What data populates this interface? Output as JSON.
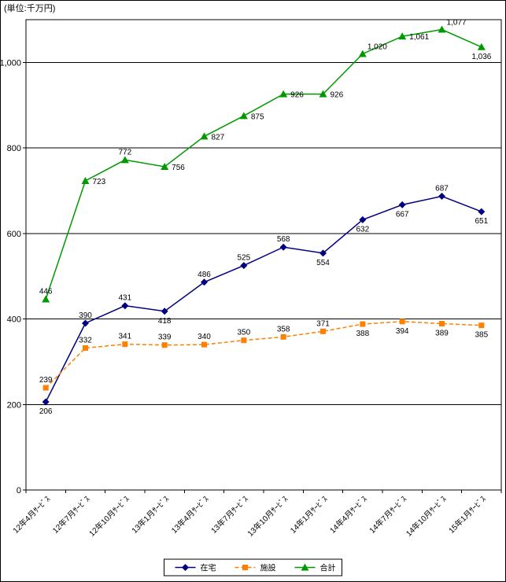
{
  "chart_data": {
    "type": "line",
    "title": "",
    "unit": "(単位:千万円)",
    "categories": [
      "12年4月ｻｰﾋﾞｽ",
      "12年7月ｻｰﾋﾞｽ",
      "12年10月ｻｰﾋﾞｽ",
      "13年1月ｻｰﾋﾞｽ",
      "13年4月ｻｰﾋﾞｽ",
      "13年7月ｻｰﾋﾞｽ",
      "13年10月ｻｰﾋﾞｽ",
      "14年1月ｻｰﾋﾞｽ",
      "14年4月ｻｰﾋﾞｽ",
      "14年7月ｻｰﾋﾞｽ",
      "14年10月ｻｰﾋﾞｽ",
      "15年1月ｻｰﾋﾞｽ"
    ],
    "series": [
      {
        "name": "在宅",
        "color": "#000080",
        "marker": "diamond",
        "line_style": "solid",
        "values": [
          206,
          390,
          431,
          418,
          486,
          525,
          568,
          554,
          632,
          667,
          687,
          651
        ]
      },
      {
        "name": "施設",
        "color": "#FF8000",
        "marker": "square",
        "line_style": "dashed",
        "values": [
          239,
          332,
          341,
          339,
          340,
          350,
          358,
          371,
          388,
          394,
          389,
          385
        ]
      },
      {
        "name": "合計",
        "color": "#009900",
        "marker": "triangle",
        "line_style": "solid",
        "values": [
          446,
          723,
          772,
          756,
          827,
          875,
          926,
          926,
          1020,
          1061,
          1077,
          1036
        ]
      }
    ],
    "ylim": [
      0,
      1100
    ],
    "ytick_interval": 200,
    "ytick_labels": [
      "0",
      "200",
      "400",
      "600",
      "800",
      "1,000"
    ],
    "grid": true,
    "data_labels": true,
    "legend_position": "bottom"
  }
}
